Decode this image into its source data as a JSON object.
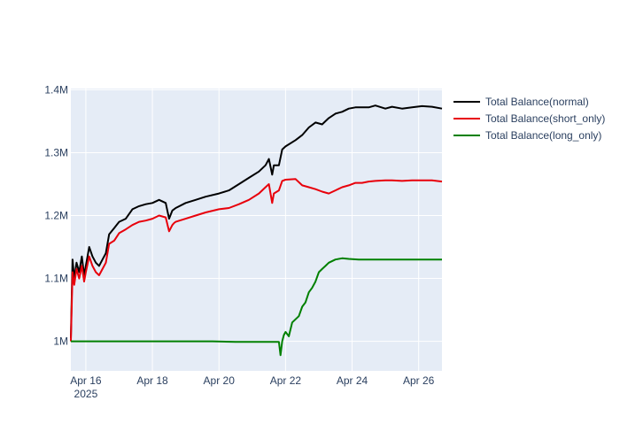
{
  "chart_data": {
    "type": "line",
    "title": "",
    "xlabel": "",
    "ylabel": "",
    "x_tick_labels": [
      "Apr 16",
      "Apr 18",
      "Apr 20",
      "Apr 22",
      "Apr 24",
      "Apr 26"
    ],
    "x_tick_days": [
      16,
      18,
      20,
      22,
      24,
      26
    ],
    "x_year_label": "2025",
    "xlim_days": [
      15.55,
      26.7
    ],
    "y_tick_labels": [
      "1M",
      "1.1M",
      "1.2M",
      "1.3M",
      "1.4M"
    ],
    "y_tick_values": [
      1000000,
      1100000,
      1200000,
      1300000,
      1400000
    ],
    "ylim": [
      953000,
      1402000
    ],
    "grid": true,
    "legend_position": "top-right",
    "x_unit": "day of April 2025",
    "series": [
      {
        "name": "Total Balance(normal)",
        "color": "#000000",
        "x": [
          15.55,
          15.6,
          15.65,
          15.72,
          15.8,
          15.88,
          15.95,
          16.0,
          16.1,
          16.2,
          16.3,
          16.4,
          16.5,
          16.6,
          16.7,
          16.85,
          17.0,
          17.2,
          17.4,
          17.6,
          17.8,
          18.0,
          18.2,
          18.4,
          18.5,
          18.6,
          18.65,
          18.7,
          19.0,
          19.3,
          19.6,
          20.0,
          20.3,
          20.6,
          20.9,
          21.2,
          21.4,
          21.5,
          21.6,
          21.65,
          21.8,
          21.9,
          22.0,
          22.3,
          22.5,
          22.7,
          22.9,
          23.1,
          23.3,
          23.5,
          23.7,
          23.9,
          24.1,
          24.3,
          24.5,
          24.7,
          25.0,
          25.2,
          25.5,
          25.8,
          26.1,
          26.4,
          26.7
        ],
        "y": [
          1005000,
          1130000,
          1100000,
          1125000,
          1110000,
          1135000,
          1105000,
          1120000,
          1150000,
          1135000,
          1125000,
          1120000,
          1130000,
          1140000,
          1170000,
          1180000,
          1190000,
          1195000,
          1210000,
          1215000,
          1218000,
          1220000,
          1225000,
          1220000,
          1195000,
          1208000,
          1210000,
          1212000,
          1220000,
          1225000,
          1230000,
          1235000,
          1240000,
          1250000,
          1260000,
          1270000,
          1280000,
          1290000,
          1265000,
          1280000,
          1280000,
          1305000,
          1310000,
          1320000,
          1328000,
          1340000,
          1348000,
          1345000,
          1355000,
          1362000,
          1365000,
          1370000,
          1372000,
          1372000,
          1372000,
          1375000,
          1370000,
          1373000,
          1370000,
          1372000,
          1374000,
          1373000,
          1370000
        ]
      },
      {
        "name": "Total Balance(short_only)",
        "color": "#e8000b",
        "x": [
          15.55,
          15.6,
          15.65,
          15.72,
          15.8,
          15.88,
          15.95,
          16.0,
          16.1,
          16.2,
          16.3,
          16.4,
          16.5,
          16.6,
          16.7,
          16.85,
          17.0,
          17.2,
          17.4,
          17.6,
          17.8,
          18.0,
          18.2,
          18.4,
          18.5,
          18.6,
          18.65,
          18.7,
          19.0,
          19.3,
          19.6,
          20.0,
          20.3,
          20.6,
          20.9,
          21.2,
          21.4,
          21.5,
          21.6,
          21.65,
          21.8,
          21.9,
          22.0,
          22.3,
          22.5,
          22.7,
          22.9,
          23.1,
          23.3,
          23.5,
          23.7,
          23.9,
          24.1,
          24.3,
          24.5,
          24.7,
          25.0,
          25.2,
          25.5,
          25.8,
          26.1,
          26.4,
          26.7
        ],
        "y": [
          1000000,
          1110000,
          1090000,
          1115000,
          1100000,
          1120000,
          1095000,
          1110000,
          1135000,
          1120000,
          1110000,
          1105000,
          1115000,
          1125000,
          1155000,
          1160000,
          1172000,
          1178000,
          1185000,
          1190000,
          1192000,
          1195000,
          1200000,
          1197000,
          1175000,
          1185000,
          1188000,
          1190000,
          1195000,
          1200000,
          1205000,
          1210000,
          1212000,
          1218000,
          1225000,
          1235000,
          1245000,
          1250000,
          1220000,
          1235000,
          1240000,
          1255000,
          1257000,
          1258000,
          1248000,
          1245000,
          1242000,
          1238000,
          1235000,
          1240000,
          1245000,
          1248000,
          1252000,
          1252000,
          1254000,
          1255000,
          1256000,
          1256000,
          1255000,
          1256000,
          1256000,
          1256000,
          1254000
        ]
      },
      {
        "name": "Total Balance(long_only)",
        "color": "#008000",
        "x": [
          15.55,
          16.0,
          17.0,
          18.0,
          19.0,
          19.8,
          20.5,
          21.0,
          21.5,
          21.8,
          21.85,
          21.9,
          21.95,
          22.0,
          22.1,
          22.2,
          22.3,
          22.4,
          22.5,
          22.6,
          22.7,
          22.8,
          22.9,
          23.0,
          23.1,
          23.2,
          23.3,
          23.5,
          23.7,
          23.9,
          24.2,
          24.6,
          25.0,
          25.5,
          26.0,
          26.5,
          26.7
        ],
        "y": [
          1000000,
          1000000,
          1000000,
          1000000,
          1000000,
          1000000,
          999000,
          999000,
          999000,
          999000,
          978000,
          1000000,
          1010000,
          1015000,
          1008000,
          1030000,
          1035000,
          1040000,
          1055000,
          1062000,
          1078000,
          1085000,
          1095000,
          1110000,
          1115000,
          1120000,
          1125000,
          1130000,
          1132000,
          1131000,
          1130000,
          1130000,
          1130000,
          1130000,
          1130000,
          1130000,
          1130000
        ]
      }
    ]
  }
}
